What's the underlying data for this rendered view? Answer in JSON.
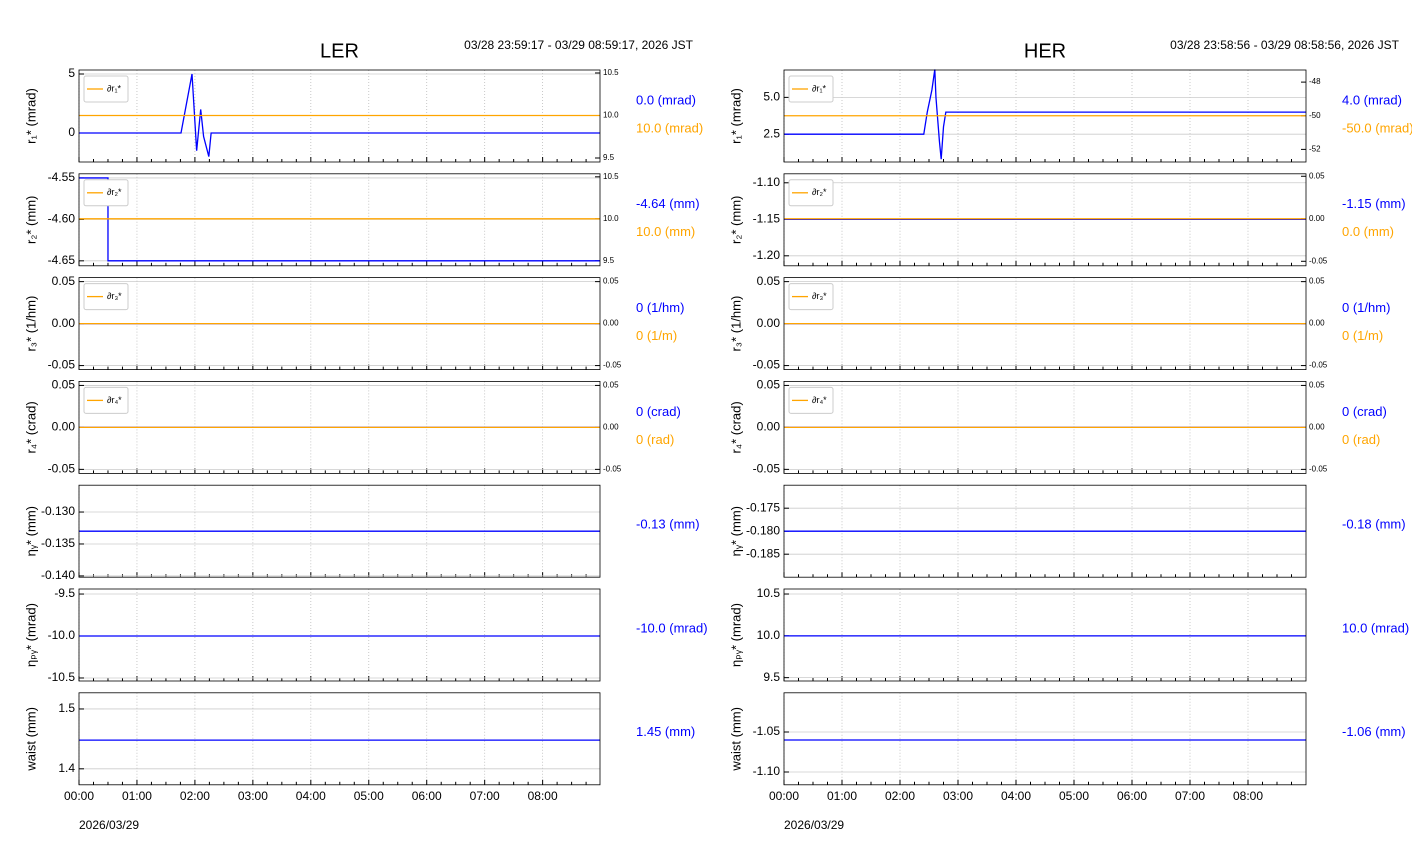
{
  "chart_data": [
    {
      "type": "line",
      "title": "LER",
      "subtitle": "03/28 23:59:17 - 03/29 08:59:17, 2026 JST",
      "x_label": "2026/03/29",
      "xlim": [
        0,
        8.99
      ],
      "xticks": [
        {
          "value": 0,
          "label": "00:00"
        },
        {
          "value": 1,
          "label": "01:00"
        },
        {
          "value": 2,
          "label": "02:00"
        },
        {
          "value": 3,
          "label": "03:00"
        },
        {
          "value": 4,
          "label": "04:00"
        },
        {
          "value": 5,
          "label": "05:00"
        },
        {
          "value": 6,
          "label": "06:00"
        },
        {
          "value": 7,
          "label": "07:00"
        },
        {
          "value": 8,
          "label": "08:00"
        }
      ],
      "grid": true,
      "panels": [
        {
          "y_label": "r₁* (mrad)",
          "ylim": [
            -2.46,
            5.34
          ],
          "yticks": [
            0,
            5
          ],
          "y2lim": [
            9.453,
            10.535
          ],
          "y2ticks": [
            9.5,
            {
              "value": 10,
              "label": "10.0"
            },
            10.5
          ],
          "readouts": [
            {
              "text": "0.0 (mrad)",
              "color": "#0000ff"
            },
            {
              "text": "10.0 (mrad)",
              "color": "#ffa500"
            }
          ],
          "series": [
            {
              "color": "#0000ff",
              "x": [
                0,
                1.76,
                1.95,
                2.03,
                2.1,
                2.15,
                2.24,
                2.28,
                8.99
              ],
              "values": [
                0,
                0,
                5,
                -1.5,
                2,
                -0.3,
                -2,
                0,
                0
              ]
            },
            {
              "name": "∂r₁*",
              "color": "#ffa500",
              "axis": "y2",
              "x": [
                0,
                8.99
              ],
              "values": [
                10,
                10
              ]
            }
          ]
        },
        {
          "y_label": "r₂* (mm)",
          "ylim": [
            -4.656,
            -4.545
          ],
          "yticks": [
            -4.55,
            {
              "value": -4.6,
              "label": "-4.60"
            },
            -4.65
          ],
          "y2lim": [
            9.44,
            10.536
          ],
          "y2ticks": [
            9.5,
            {
              "value": 10,
              "label": "10.0"
            },
            10.5
          ],
          "readouts": [
            {
              "text": "-4.64 (mm)",
              "color": "#0000ff"
            },
            {
              "text": "10.0 (mm)",
              "color": "#ffa500"
            }
          ],
          "series": [
            {
              "color": "#0000ff",
              "x": [
                0,
                0.5,
                0.5,
                8.99
              ],
              "values": [
                -4.55,
                -4.55,
                -4.65,
                -4.65
              ]
            },
            {
              "name": "∂r₂*",
              "color": "#ffa500",
              "axis": "y2",
              "x": [
                0,
                8.99
              ],
              "values": [
                10,
                10
              ]
            }
          ]
        },
        {
          "y_label": "r₃* (1/hm)",
          "ylim": [
            -0.0548,
            0.0548
          ],
          "yticks": [
            -0.05,
            {
              "value": 0,
              "label": "0.00"
            },
            0.05
          ],
          "y2lim": [
            -0.0548,
            0.0548
          ],
          "y2ticks": [
            -0.05,
            {
              "value": 0,
              "label": "0.00"
            },
            0.05
          ],
          "readouts": [
            {
              "text": "0 (1/hm)",
              "color": "#0000ff"
            },
            {
              "text": "0 (1/m)",
              "color": "#ffa500"
            }
          ],
          "series": [
            {
              "color": "#0000ff",
              "x": [
                0,
                8.99
              ],
              "values": [
                0,
                0
              ]
            },
            {
              "name": "∂r₃*",
              "color": "#ffa500",
              "axis": "y2",
              "x": [
                0,
                8.99
              ],
              "values": [
                0,
                0
              ]
            }
          ]
        },
        {
          "y_label": "r₄* (crad)",
          "ylim": [
            -0.0548,
            0.0548
          ],
          "yticks": [
            -0.05,
            {
              "value": 0,
              "label": "0.00"
            },
            0.05
          ],
          "y2lim": [
            -0.0548,
            0.0548
          ],
          "y2ticks": [
            -0.05,
            {
              "value": 0,
              "label": "0.00"
            },
            0.05
          ],
          "readouts": [
            {
              "text": "0 (crad)",
              "color": "#0000ff"
            },
            {
              "text": "0 (rad)",
              "color": "#ffa500"
            }
          ],
          "series": [
            {
              "color": "#0000ff",
              "x": [
                0,
                8.99
              ],
              "values": [
                0,
                0
              ]
            },
            {
              "name": "∂r₄*",
              "color": "#ffa500",
              "axis": "y2",
              "x": [
                0,
                8.99
              ],
              "values": [
                0,
                0
              ]
            }
          ]
        },
        {
          "y_label": "ηᵧ* (mm)",
          "ylim": [
            -0.1402,
            -0.1258
          ],
          "yticks": [
            {
              "value": -0.13,
              "label": "-0.130"
            },
            {
              "value": -0.135,
              "label": "-0.135"
            },
            {
              "value": -0.14,
              "label": "-0.140"
            }
          ],
          "readouts": [
            {
              "text": "-0.13 (mm)",
              "color": "#0000ff"
            }
          ],
          "series": [
            {
              "color": "#0000ff",
              "x": [
                0,
                8.99
              ],
              "values": [
                -0.133,
                -0.133
              ]
            }
          ]
        },
        {
          "y_label": "ηₚᵧ* (mrad)",
          "ylim": [
            -10.536,
            -9.44
          ],
          "yticks": [
            -9.5,
            {
              "value": -10,
              "label": "-10.0"
            },
            -10.5
          ],
          "readouts": [
            {
              "text": "-10.0 (mrad)",
              "color": "#0000ff"
            }
          ],
          "series": [
            {
              "color": "#0000ff",
              "x": [
                0,
                8.99
              ],
              "values": [
                -10,
                -10
              ]
            }
          ]
        },
        {
          "y_label": "waist (mm)",
          "ylim": [
            1.3733,
            1.527
          ],
          "yticks": [
            1.5,
            1.4
          ],
          "readouts": [
            {
              "text": "1.45 (mm)",
              "color": "#0000ff"
            }
          ],
          "series": [
            {
              "color": "#0000ff",
              "x": [
                0,
                8.99
              ],
              "values": [
                1.448,
                1.448
              ]
            }
          ]
        }
      ]
    },
    {
      "type": "line",
      "title": "HER",
      "subtitle": "03/28 23:58:56 - 03/29 08:58:56, 2026 JST",
      "x_label": "2026/03/29",
      "xlim": [
        0,
        9
      ],
      "xticks": [
        {
          "value": 0,
          "label": "00:00"
        },
        {
          "value": 1,
          "label": "01:00"
        },
        {
          "value": 2,
          "label": "02:00"
        },
        {
          "value": 3,
          "label": "03:00"
        },
        {
          "value": 4,
          "label": "04:00"
        },
        {
          "value": 5,
          "label": "05:00"
        },
        {
          "value": 6,
          "label": "06:00"
        },
        {
          "value": 7,
          "label": "07:00"
        },
        {
          "value": 8,
          "label": "08:00"
        }
      ],
      "grid": true,
      "panels": [
        {
          "y_label": "r₁* (mrad)",
          "ylim": [
            0.61,
            6.86
          ],
          "yticks": [
            2.5,
            {
              "value": 5,
              "label": "5.0"
            }
          ],
          "y2lim": [
            -52.75,
            -47.28
          ],
          "y2ticks": [
            -48,
            -50,
            -52
          ],
          "readouts": [
            {
              "text": "4.0 (mrad)",
              "color": "#0000ff"
            },
            {
              "text": "-50.0 (mrad)",
              "color": "#ffa500"
            }
          ],
          "series": [
            {
              "color": "#0000ff",
              "x": [
                0,
                2.41,
                2.47,
                2.55,
                2.6,
                2.62,
                2.68,
                2.71,
                2.75,
                2.79,
                9
              ],
              "values": [
                2.5,
                2.5,
                4,
                5.5,
                6.9,
                5,
                2,
                0.8,
                3,
                4,
                4
              ]
            },
            {
              "name": "∂r₁*",
              "color": "#ffa500",
              "axis": "y2",
              "x": [
                0,
                9
              ],
              "values": [
                -50,
                -50
              ]
            }
          ]
        },
        {
          "y_label": "r₂* (mm)",
          "ylim": [
            -1.2137,
            -1.0877
          ],
          "yticks": [
            {
              "value": -1.1,
              "label": "-1.10"
            },
            -1.15,
            {
              "value": -1.2,
              "label": "-1.20"
            }
          ],
          "y2lim": [
            -0.0553,
            0.0529
          ],
          "y2ticks": [
            0.05,
            {
              "value": 0,
              "label": "0.00"
            },
            -0.05
          ],
          "readouts": [
            {
              "text": "-1.15 (mm)",
              "color": "#0000ff"
            },
            {
              "text": "0.0 (mm)",
              "color": "#ffa500"
            }
          ],
          "series": [
            {
              "color": "#0000ff",
              "x": [
                0,
                9
              ],
              "values": [
                -1.15,
                -1.15
              ]
            },
            {
              "name": "∂r₂*",
              "color": "#ffa500",
              "axis": "y2",
              "x": [
                0,
                9
              ],
              "values": [
                0,
                0
              ]
            }
          ]
        },
        {
          "y_label": "r₃* (1/hm)",
          "ylim": [
            -0.0548,
            0.0548
          ],
          "yticks": [
            -0.05,
            {
              "value": 0,
              "label": "0.00"
            },
            0.05
          ],
          "y2lim": [
            -0.0548,
            0.0548
          ],
          "y2ticks": [
            -0.05,
            {
              "value": 0,
              "label": "0.00"
            },
            0.05
          ],
          "readouts": [
            {
              "text": "0 (1/hm)",
              "color": "#0000ff"
            },
            {
              "text": "0 (1/m)",
              "color": "#ffa500"
            }
          ],
          "series": [
            {
              "color": "#0000ff",
              "x": [
                0,
                9
              ],
              "values": [
                0,
                0
              ]
            },
            {
              "name": "∂r₃*",
              "color": "#ffa500",
              "axis": "y2",
              "x": [
                0,
                9
              ],
              "values": [
                0,
                0
              ]
            }
          ]
        },
        {
          "y_label": "r₄* (crad)",
          "ylim": [
            -0.0548,
            0.0548
          ],
          "yticks": [
            -0.05,
            {
              "value": 0,
              "label": "0.00"
            },
            0.05
          ],
          "y2lim": [
            -0.0548,
            0.0548
          ],
          "y2ticks": [
            -0.05,
            {
              "value": 0,
              "label": "0.00"
            },
            0.05
          ],
          "readouts": [
            {
              "text": "0 (crad)",
              "color": "#0000ff"
            },
            {
              "text": "0 (rad)",
              "color": "#ffa500"
            }
          ],
          "series": [
            {
              "color": "#0000ff",
              "x": [
                0,
                9
              ],
              "values": [
                0,
                0
              ]
            },
            {
              "name": "∂r₄*",
              "color": "#ffa500",
              "axis": "y2",
              "x": [
                0,
                9
              ],
              "values": [
                0,
                0
              ]
            }
          ]
        },
        {
          "y_label": "ηᵧ* (mm)",
          "ylim": [
            -0.19,
            -0.17
          ],
          "yticks": [
            {
              "value": -0.175,
              "label": "-0.175"
            },
            {
              "value": -0.18,
              "label": "-0.180"
            },
            {
              "value": -0.185,
              "label": "-0.185"
            }
          ],
          "readouts": [
            {
              "text": "-0.18 (mm)",
              "color": "#0000ff"
            }
          ],
          "series": [
            {
              "color": "#0000ff",
              "x": [
                0,
                9
              ],
              "values": [
                -0.18,
                -0.18
              ]
            }
          ]
        },
        {
          "y_label": "ηₚᵧ* (mrad)",
          "ylim": [
            9.46,
            10.56
          ],
          "yticks": [
            10.5,
            {
              "value": 10,
              "label": "10.0"
            },
            9.5
          ],
          "readouts": [
            {
              "text": "10.0 (mrad)",
              "color": "#0000ff"
            }
          ],
          "series": [
            {
              "color": "#0000ff",
              "x": [
                0,
                9
              ],
              "values": [
                10,
                10
              ]
            }
          ]
        },
        {
          "y_label": "waist (mm)",
          "ylim": [
            -1.116,
            -1.001
          ],
          "yticks": [
            -1.05,
            {
              "value": -1.1,
              "label": "-1.10"
            }
          ],
          "readouts": [
            {
              "text": "-1.06 (mm)",
              "color": "#0000ff"
            }
          ],
          "series": [
            {
              "color": "#0000ff",
              "x": [
                0,
                9
              ],
              "values": [
                -1.06,
                -1.06
              ]
            }
          ]
        }
      ]
    }
  ]
}
